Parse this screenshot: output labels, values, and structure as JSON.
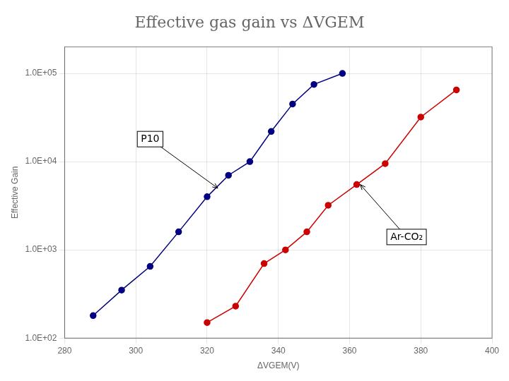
{
  "chart_data": {
    "type": "line",
    "title": "Effective gas gain vs ΔVGEM",
    "x_label": "ΔVGEM(V)",
    "y_label": "Effective Gain",
    "log": "y",
    "grid": true,
    "xlim": [
      280,
      400
    ],
    "ylim": [
      100,
      200000
    ],
    "xticks": [
      280,
      300,
      320,
      340,
      360,
      380,
      400
    ],
    "yticks": [
      {
        "value": 100,
        "label": "1.0E+02"
      },
      {
        "value": 1000,
        "label": "1.0E+03"
      },
      {
        "value": 10000,
        "label": "1.0E+04"
      },
      {
        "value": 100000,
        "label": "1.0E+05"
      }
    ],
    "series": [
      {
        "name": "P10",
        "color": "#000080",
        "x": [
          288,
          296,
          304,
          312,
          320,
          326,
          332,
          338,
          344,
          350,
          358
        ],
        "values": [
          180,
          350,
          650,
          1600,
          4000,
          7000,
          10000,
          22000,
          45000,
          75000,
          100000
        ]
      },
      {
        "name": "Ar-CO₂",
        "color": "#CC0000",
        "x": [
          320,
          328,
          336,
          342,
          348,
          354,
          362,
          370,
          380,
          390
        ],
        "values": [
          150,
          230,
          700,
          1000,
          1600,
          3200,
          5500,
          9500,
          32000,
          65000
        ]
      }
    ],
    "annotations": [
      {
        "text": "P10",
        "x": 323,
        "y": 5000,
        "text_x": 304,
        "text_y": 18000
      },
      {
        "text": "Ar-CO₂",
        "x": 363,
        "y": 5500,
        "text_x": 376,
        "text_y": 1400
      }
    ]
  }
}
